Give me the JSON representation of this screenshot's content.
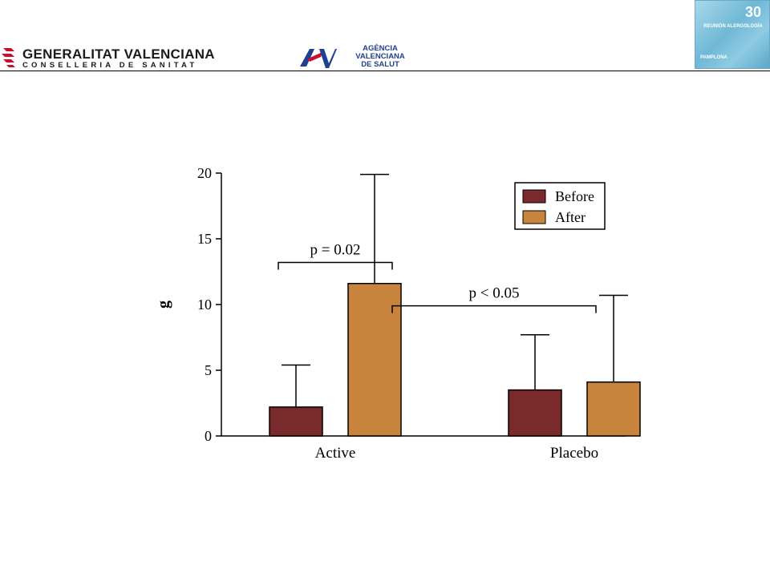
{
  "header": {
    "generalitat_name": "GENERALITAT VALENCIANA",
    "generalitat_sub": "CONSELLERIA DE SANITAT",
    "avs_line1": "AGÈNCIA",
    "avs_line2": "VALENCIANA",
    "avs_line3": "DE SALUT",
    "reunion_number": "30",
    "reunion_title": "REUNIÓN ALERGOLOGÍA",
    "reunion_city": "PAMPLONA",
    "logo_red": "#c8102e",
    "logo_blue": "#1f3f8f"
  },
  "chart_data": {
    "type": "bar",
    "categories": [
      "Active",
      "Placebo"
    ],
    "series": [
      {
        "name": "Before",
        "values": [
          2.2,
          3.5
        ],
        "errors": [
          3.2,
          4.2
        ],
        "color": "#7b2a2c"
      },
      {
        "name": "After",
        "values": [
          11.6,
          4.1
        ],
        "errors": [
          8.3,
          6.6
        ],
        "color": "#c8843c"
      }
    ],
    "ylabel": "g",
    "ylim": [
      0,
      20
    ],
    "yticks": [
      0,
      5,
      10,
      15,
      20
    ],
    "grid": false,
    "legend_position": "top-right",
    "annotations": [
      {
        "text": "p = 0.02",
        "from": "Active Before",
        "to": "Active After",
        "level": 13.2
      },
      {
        "text": "p < 0.05",
        "from": "Active After",
        "to": "Placebo After",
        "level": 9.9
      }
    ]
  }
}
